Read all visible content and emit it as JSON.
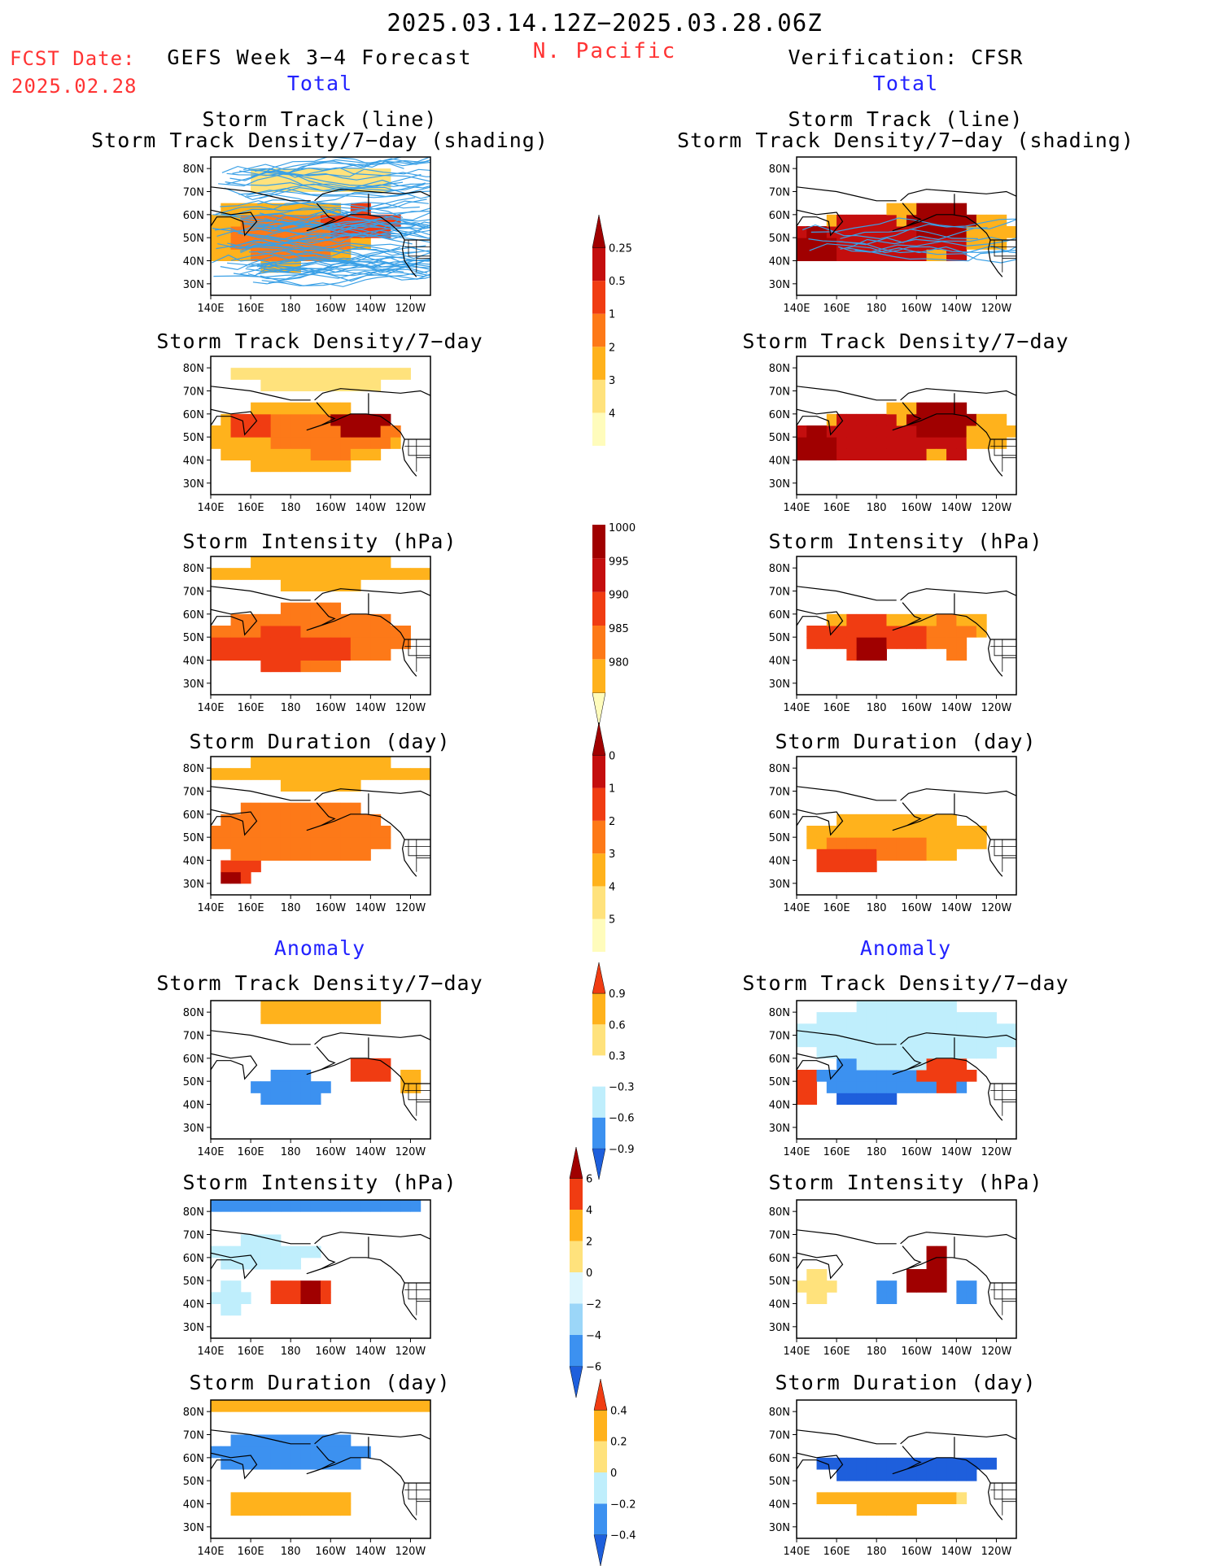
{
  "header": {
    "title": "2025.03.14.12Z−2025.03.28.06Z",
    "region": "N. Pacific",
    "fcst_label": "FCST Date:",
    "fcst_date": "2025.02.28",
    "left_title": "GEFS Week 3−4 Forecast",
    "right_title": "Verification: CFSR"
  },
  "sections": {
    "total": "Total",
    "anomaly": "Anomaly"
  },
  "titles": {
    "track_line": "Storm Track (line)",
    "track_shading": "Storm Track Density/7−day (shading)",
    "density": "Storm Track Density/7−day",
    "intensity": "Storm Intensity (hPa)",
    "duration": "Storm Duration (day)"
  },
  "axes": {
    "lon_ticks": [
      "140E",
      "160E",
      "180",
      "160W",
      "140W",
      "120W"
    ],
    "lat_ticks": [
      "80N",
      "70N",
      "60N",
      "50N",
      "40N",
      "30N"
    ]
  },
  "colorbars": [
    {
      "id": "density_total",
      "colors": [
        "#fffcbc",
        "#ffe27c",
        "#ffb21c",
        "#fd7918",
        "#f03c12",
        "#c40e0e",
        "#a00000"
      ],
      "labels": [
        "0.25",
        "0.5",
        "1",
        "2",
        "3",
        "4"
      ],
      "arrows": "top"
    },
    {
      "id": "intensity_total",
      "colors": [
        "#fffcbc",
        "#ffb21c",
        "#fd7918",
        "#f03c12",
        "#c40e0e",
        "#a00000"
      ],
      "labels": [
        "1000",
        "995",
        "990",
        "985",
        "980"
      ],
      "arrows": "bottom"
    },
    {
      "id": "duration_total",
      "colors": [
        "#fffcbc",
        "#ffe27c",
        "#ffb21c",
        "#fd7918",
        "#f03c12",
        "#c40e0e",
        "#a00000"
      ],
      "labels": [
        "0",
        "1",
        "2",
        "3",
        "4",
        "5"
      ],
      "arrows": "top"
    },
    {
      "id": "density_anom",
      "colors": [
        "#1e5fdc",
        "#3c91f0",
        "#bfeefc",
        "#ffffff",
        "#ffe27c",
        "#ffb21c",
        "#f03c12"
      ],
      "labels": [
        "0.9",
        "0.6",
        "0.3",
        "−0.3",
        "−0.6",
        "−0.9"
      ],
      "arrows": "both"
    },
    {
      "id": "intensity_anom",
      "colors": [
        "#1e5fdc",
        "#3c91f0",
        "#9bd6f8",
        "#ddf6fd",
        "#ffe27c",
        "#ffb21c",
        "#f03c12",
        "#a00000"
      ],
      "labels": [
        "6",
        "4",
        "2",
        "0",
        "−2",
        "−4",
        "−6"
      ],
      "arrows": "both"
    },
    {
      "id": "duration_anom",
      "colors": [
        "#1e5fdc",
        "#3c91f0",
        "#bfeefc",
        "#ffe27c",
        "#ffb21c",
        "#f03c12"
      ],
      "labels": [
        "0.4",
        "0.2",
        "0",
        "−0.2",
        "−0.4"
      ],
      "arrows": "both"
    }
  ],
  "chart_data": [
    {
      "type": "heatmap",
      "panel": "gefs_total_track",
      "title": "Storm Track (line)",
      "subtitle": "Storm Track Density/7−day (shading)",
      "xlabel": "",
      "ylabel": "",
      "xlim": [
        140,
        250
      ],
      "ylim": [
        25,
        85
      ],
      "overlay": "storm track lines",
      "blobs": [
        [
          195,
          75,
          40,
          6,
          1
        ],
        [
          175,
          52,
          45,
          15,
          2
        ],
        [
          162,
          55,
          10,
          4,
          3
        ],
        [
          215,
          56,
          18,
          7,
          4
        ],
        [
          180,
          50,
          30,
          10,
          3
        ]
      ]
    },
    {
      "type": "heatmap",
      "panel": "cfsr_total_track",
      "title": "Storm Track (line)",
      "subtitle": "Storm Track Density/7−day (shading)",
      "xlabel": "",
      "ylabel": "",
      "xlim": [
        140,
        250
      ],
      "ylim": [
        25,
        85
      ],
      "overlay": "storm track lines",
      "blobs": [
        [
          175,
          49,
          40,
          9,
          5
        ],
        [
          213,
          57,
          18,
          7,
          6
        ],
        [
          220,
          45,
          7,
          5,
          5
        ],
        [
          150,
          47,
          10,
          7,
          6
        ],
        [
          200,
          52,
          50,
          11,
          2
        ]
      ]
    },
    {
      "type": "heatmap",
      "panel": "gefs_total_density",
      "title": "Storm Track Density/7−day",
      "xlabel": "",
      "ylabel": "",
      "xlim": [
        140,
        250
      ],
      "ylim": [
        25,
        85
      ],
      "blobs": [
        [
          195,
          76,
          45,
          5,
          1
        ],
        [
          185,
          50,
          50,
          14,
          2
        ],
        [
          200,
          52,
          35,
          10,
          3
        ],
        [
          160,
          55,
          10,
          4,
          4
        ],
        [
          215,
          56,
          14,
          6,
          6
        ]
      ]
    },
    {
      "type": "heatmap",
      "panel": "cfsr_total_density",
      "title": "Storm Track Density/7−day",
      "xlabel": "",
      "ylabel": "",
      "xlim": [
        140,
        250
      ],
      "ylim": [
        25,
        85
      ],
      "blobs": [
        [
          175,
          49,
          40,
          9,
          5
        ],
        [
          213,
          57,
          18,
          7,
          6
        ],
        [
          220,
          45,
          7,
          5,
          5
        ],
        [
          150,
          46,
          12,
          7,
          6
        ],
        [
          200,
          52,
          50,
          11,
          2
        ]
      ]
    },
    {
      "type": "heatmap",
      "panel": "gefs_total_intensity",
      "title": "Storm Intensity (hPa)",
      "xlabel": "",
      "ylabel": "",
      "xlim": [
        140,
        250
      ],
      "ylim": [
        25,
        85
      ],
      "blobs": [
        [
          195,
          78,
          55,
          6,
          2
        ],
        [
          190,
          50,
          50,
          13,
          3
        ],
        [
          175,
          45,
          35,
          8,
          4
        ]
      ]
    },
    {
      "type": "heatmap",
      "panel": "cfsr_total_intensity",
      "title": "Storm Intensity (hPa)",
      "xlabel": "",
      "ylabel": "",
      "xlim": [
        140,
        250
      ],
      "ylim": [
        25,
        85
      ],
      "blobs": [
        [
          175,
          50,
          30,
          8,
          4
        ],
        [
          178,
          45,
          10,
          4,
          6
        ],
        [
          215,
          52,
          15,
          6,
          3
        ],
        [
          220,
          44,
          8,
          4,
          3
        ],
        [
          195,
          55,
          45,
          6,
          2
        ]
      ]
    },
    {
      "type": "heatmap",
      "panel": "gefs_total_duration",
      "title": "Storm Duration (day)",
      "xlabel": "",
      "ylabel": "",
      "xlim": [
        140,
        250
      ],
      "ylim": [
        25,
        85
      ],
      "blobs": [
        [
          195,
          78,
          55,
          6,
          2
        ],
        [
          185,
          52,
          45,
          14,
          3
        ],
        [
          155,
          36,
          10,
          4,
          4
        ],
        [
          150,
          34,
          5,
          2,
          6
        ]
      ]
    },
    {
      "type": "heatmap",
      "panel": "cfsr_total_duration",
      "title": "Storm Duration (day)",
      "xlabel": "",
      "ylabel": "",
      "xlim": [
        140,
        250
      ],
      "ylim": [
        25,
        85
      ],
      "blobs": [
        [
          190,
          50,
          45,
          10,
          2
        ],
        [
          180,
          45,
          30,
          6,
          3
        ],
        [
          165,
          40,
          15,
          5,
          4
        ]
      ]
    },
    {
      "type": "heatmap",
      "panel": "gefs_anom_density",
      "title": "Storm Track Density/7−day",
      "xlabel": "",
      "ylabel": "",
      "xlim": [
        140,
        250
      ],
      "ylim": [
        25,
        85
      ],
      "blobs": [
        [
          195,
          80,
          55,
          3,
          5
        ],
        [
          180,
          47,
          20,
          6,
          1
        ],
        [
          220,
          54,
          10,
          6,
          6
        ],
        [
          240,
          52,
          6,
          6,
          5
        ]
      ]
    },
    {
      "type": "heatmap",
      "panel": "cfsr_anom_density",
      "title": "Storm Track Density/7−day",
      "xlabel": "",
      "ylabel": "",
      "xlim": [
        140,
        250
      ],
      "ylim": [
        25,
        85
      ],
      "blobs": [
        [
          195,
          70,
          55,
          14,
          2
        ],
        [
          190,
          52,
          40,
          8,
          1
        ],
        [
          215,
          53,
          15,
          6,
          6
        ],
        [
          145,
          47,
          6,
          8,
          6
        ],
        [
          175,
          44,
          15,
          4,
          0
        ]
      ]
    },
    {
      "type": "heatmap",
      "panel": "gefs_anom_intensity",
      "title": "Storm Intensity (hPa)",
      "xlabel": "",
      "ylabel": "",
      "xlim": [
        140,
        250
      ],
      "ylim": [
        25,
        85
      ],
      "blobs": [
        [
          190,
          82,
          55,
          4,
          1
        ],
        [
          165,
          62,
          30,
          6,
          2
        ],
        [
          185,
          45,
          18,
          6,
          6
        ],
        [
          190,
          45,
          5,
          3,
          7
        ],
        [
          150,
          42,
          8,
          6,
          2
        ]
      ]
    },
    {
      "type": "heatmap",
      "panel": "cfsr_anom_intensity",
      "title": "Storm Intensity (hPa)",
      "xlabel": "",
      "ylabel": "",
      "xlim": [
        140,
        250
      ],
      "ylim": [
        25,
        85
      ],
      "blobs": [
        [
          205,
          50,
          12,
          6,
          7
        ],
        [
          210,
          60,
          5,
          3,
          7
        ],
        [
          185,
          45,
          8,
          3,
          1
        ],
        [
          150,
          47,
          8,
          6,
          4
        ],
        [
          225,
          44,
          8,
          4,
          1
        ]
      ]
    },
    {
      "type": "heatmap",
      "panel": "gefs_anom_duration",
      "title": "Storm Duration (day)",
      "xlabel": "",
      "ylabel": "",
      "xlim": [
        140,
        250
      ],
      "ylim": [
        25,
        85
      ],
      "blobs": [
        [
          195,
          82,
          55,
          3,
          5
        ],
        [
          180,
          62,
          40,
          9,
          1
        ],
        [
          180,
          40,
          35,
          6,
          5
        ],
        [
          160,
          38,
          8,
          4,
          5
        ]
      ]
    },
    {
      "type": "heatmap",
      "panel": "cfsr_anom_duration",
      "title": "Storm Duration (day)",
      "xlabel": "",
      "ylabel": "",
      "xlim": [
        140,
        250
      ],
      "ylim": [
        25,
        85
      ],
      "blobs": [
        [
          195,
          56,
          45,
          6,
          0
        ],
        [
          185,
          42,
          35,
          5,
          5
        ],
        [
          220,
          42,
          6,
          4,
          4
        ]
      ]
    }
  ]
}
